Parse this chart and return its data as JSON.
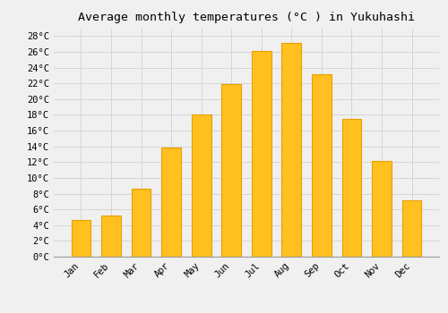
{
  "title": "Average monthly temperatures (°C ) in Yukuhashi",
  "months": [
    "Jan",
    "Feb",
    "Mar",
    "Apr",
    "May",
    "Jun",
    "Jul",
    "Aug",
    "Sep",
    "Oct",
    "Nov",
    "Dec"
  ],
  "temperatures": [
    4.7,
    5.2,
    8.6,
    13.8,
    18.1,
    21.9,
    26.1,
    27.1,
    23.1,
    17.5,
    12.1,
    7.1
  ],
  "bar_color": "#FFC020",
  "bar_edge_color": "#E8A000",
  "ylim": [
    0,
    29
  ],
  "yticks": [
    0,
    2,
    4,
    6,
    8,
    10,
    12,
    14,
    16,
    18,
    20,
    22,
    24,
    26,
    28
  ],
  "background_color": "#f0f0f0",
  "grid_color": "#d0d0d0",
  "title_fontsize": 9.5,
  "tick_fontsize": 7.5,
  "font_family": "monospace"
}
